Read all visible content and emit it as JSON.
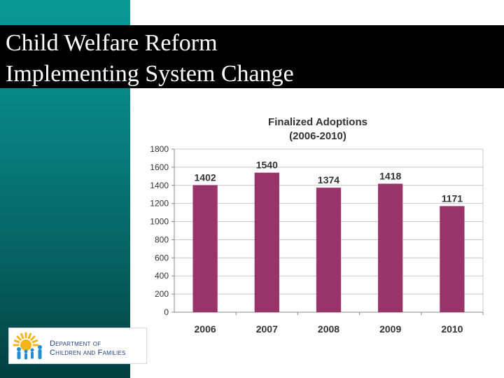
{
  "slide": {
    "title_line1": "Child Welfare Reform",
    "title_line2": "Implementing System Change"
  },
  "logo": {
    "line1": "Department of",
    "line2": "Children and Families"
  },
  "colors": {
    "bar": "#99346a",
    "band_top": "#0a9a96",
    "band_bottom": "#03403f",
    "title_bg": "#000000",
    "logo_sun": "#f4b41a",
    "logo_people": "#1f8fd1"
  },
  "chart_data": {
    "type": "bar",
    "title": "Finalized Adoptions",
    "subtitle": "(2006-2010)",
    "categories": [
      "2006",
      "2007",
      "2008",
      "2009",
      "2010"
    ],
    "values": [
      1402,
      1540,
      1374,
      1418,
      1171
    ],
    "data_labels": [
      "1402",
      "1540",
      "1374",
      "1418",
      "1171"
    ],
    "ylim": [
      0,
      1800
    ],
    "yticks": [
      0,
      200,
      400,
      600,
      800,
      1000,
      1200,
      1400,
      1600,
      1800
    ],
    "xlabel": "",
    "ylabel": "",
    "grid": true
  }
}
